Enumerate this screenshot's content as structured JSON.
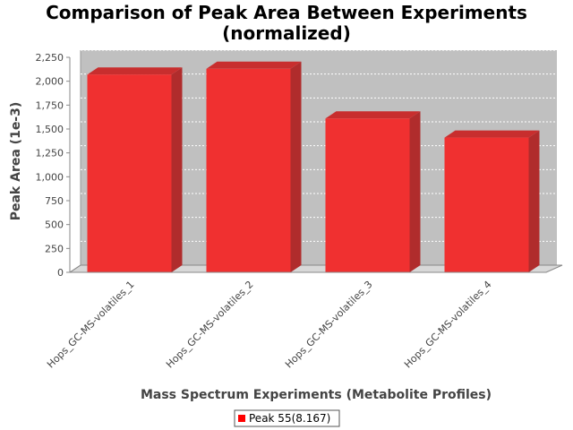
{
  "chart_data": {
    "type": "bar",
    "title": [
      "Comparison of Peak Area Between Experiments",
      "(normalized)"
    ],
    "xlabel": "Mass Spectrum Experiments (Metabolite Profiles)",
    "ylabel": "Peak Area (1e-3)",
    "ylim": [
      0,
      2250
    ],
    "yticks": [
      0,
      250,
      500,
      750,
      1000,
      1250,
      1500,
      1750,
      2000,
      2250
    ],
    "ytick_labels": [
      "0",
      "250",
      "500",
      "750",
      "1,000",
      "1,250",
      "1,500",
      "1,750",
      "2,000",
      "2,250"
    ],
    "categories": [
      "Hops_GC-MS-volatiles_1",
      "Hops_GC-MS-volatiles_2",
      "Hops_GC-MS-volatiles_3",
      "Hops_GC-MS-volatiles_4"
    ],
    "series": [
      {
        "name": "Peak 55(8.167)",
        "values": [
          2070,
          2130,
          1610,
          1410
        ]
      }
    ],
    "colors": {
      "bar_front": "#f03030",
      "bar_side": "#b02c2c",
      "bar_top": "#c82e2e",
      "plot_back": "#c0c0c0",
      "plot_floor": "#d8d8d8"
    },
    "grid": true,
    "legend_position": "bottom-center"
  }
}
